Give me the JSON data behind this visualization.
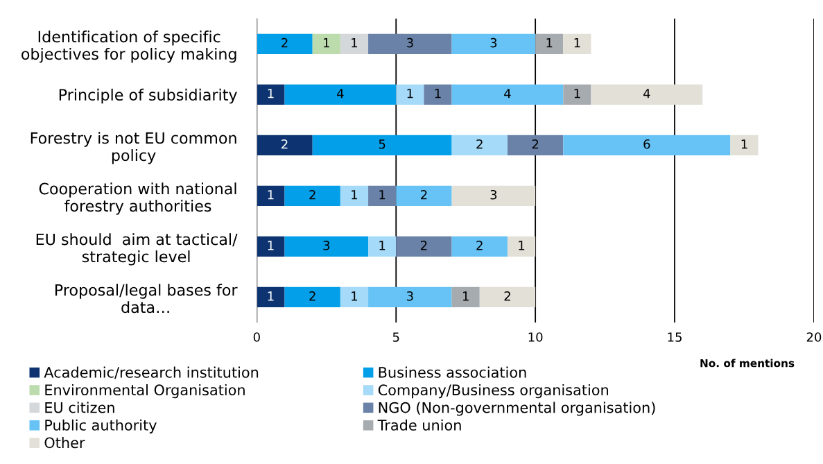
{
  "chart_data": {
    "type": "bar",
    "orientation": "horizontal",
    "stacked": true,
    "data_labels": true,
    "grid": "x",
    "legend": "bottom",
    "xlabel": "No. of mentions",
    "categories": [
      "Identification of specific\nobjectives for policy making",
      "Principle of subsidiarity",
      "Forestry is not EU common\npolicy",
      "Cooperation with national\nforestry authorities",
      "EU should  aim at tactical/\nstrategic level",
      "Proposal/legal bases for\ndata…"
    ],
    "xlim": [
      0,
      20
    ],
    "xticks": [
      0,
      5,
      10,
      15,
      20
    ],
    "series": [
      {
        "name": "Academic/research institution",
        "color": "#0d3470",
        "values": [
          null,
          1,
          2,
          1,
          1,
          1
        ]
      },
      {
        "name": "Business association",
        "color": "#039fe8",
        "values": [
          2,
          4,
          5,
          2,
          3,
          2
        ]
      },
      {
        "name": "Environmental Organisation",
        "color": "#bddcae",
        "values": [
          1,
          null,
          null,
          null,
          null,
          null
        ]
      },
      {
        "name": "Company/Business organisation",
        "color": "#a5daf8",
        "values": [
          null,
          1,
          2,
          1,
          1,
          1
        ]
      },
      {
        "name": "EU citizen",
        "color": "#d5d8db",
        "values": [
          1,
          null,
          null,
          null,
          null,
          null
        ]
      },
      {
        "name": "NGO (Non-governmental organisation)",
        "color": "#6a82a8",
        "values": [
          3,
          1,
          2,
          1,
          2,
          null
        ]
      },
      {
        "name": "Public authority",
        "color": "#67c3f5",
        "values": [
          3,
          4,
          6,
          2,
          2,
          3
        ]
      },
      {
        "name": "Trade union",
        "color": "#a6abb0",
        "values": [
          1,
          1,
          null,
          null,
          null,
          1
        ]
      },
      {
        "name": "Other",
        "color": "#e3e0d8",
        "values": [
          1,
          4,
          1,
          3,
          1,
          2
        ]
      }
    ]
  }
}
